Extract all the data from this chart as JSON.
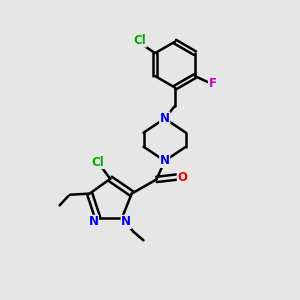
{
  "bg_color": "#e6e6e6",
  "bond_color": "#000000",
  "bond_width": 1.8,
  "atom_colors": {
    "N": "#0000ee",
    "Cl": "#00aa00",
    "F": "#cc00cc",
    "O": "#ee0000",
    "C": "#000000"
  },
  "font_size": 8.5
}
